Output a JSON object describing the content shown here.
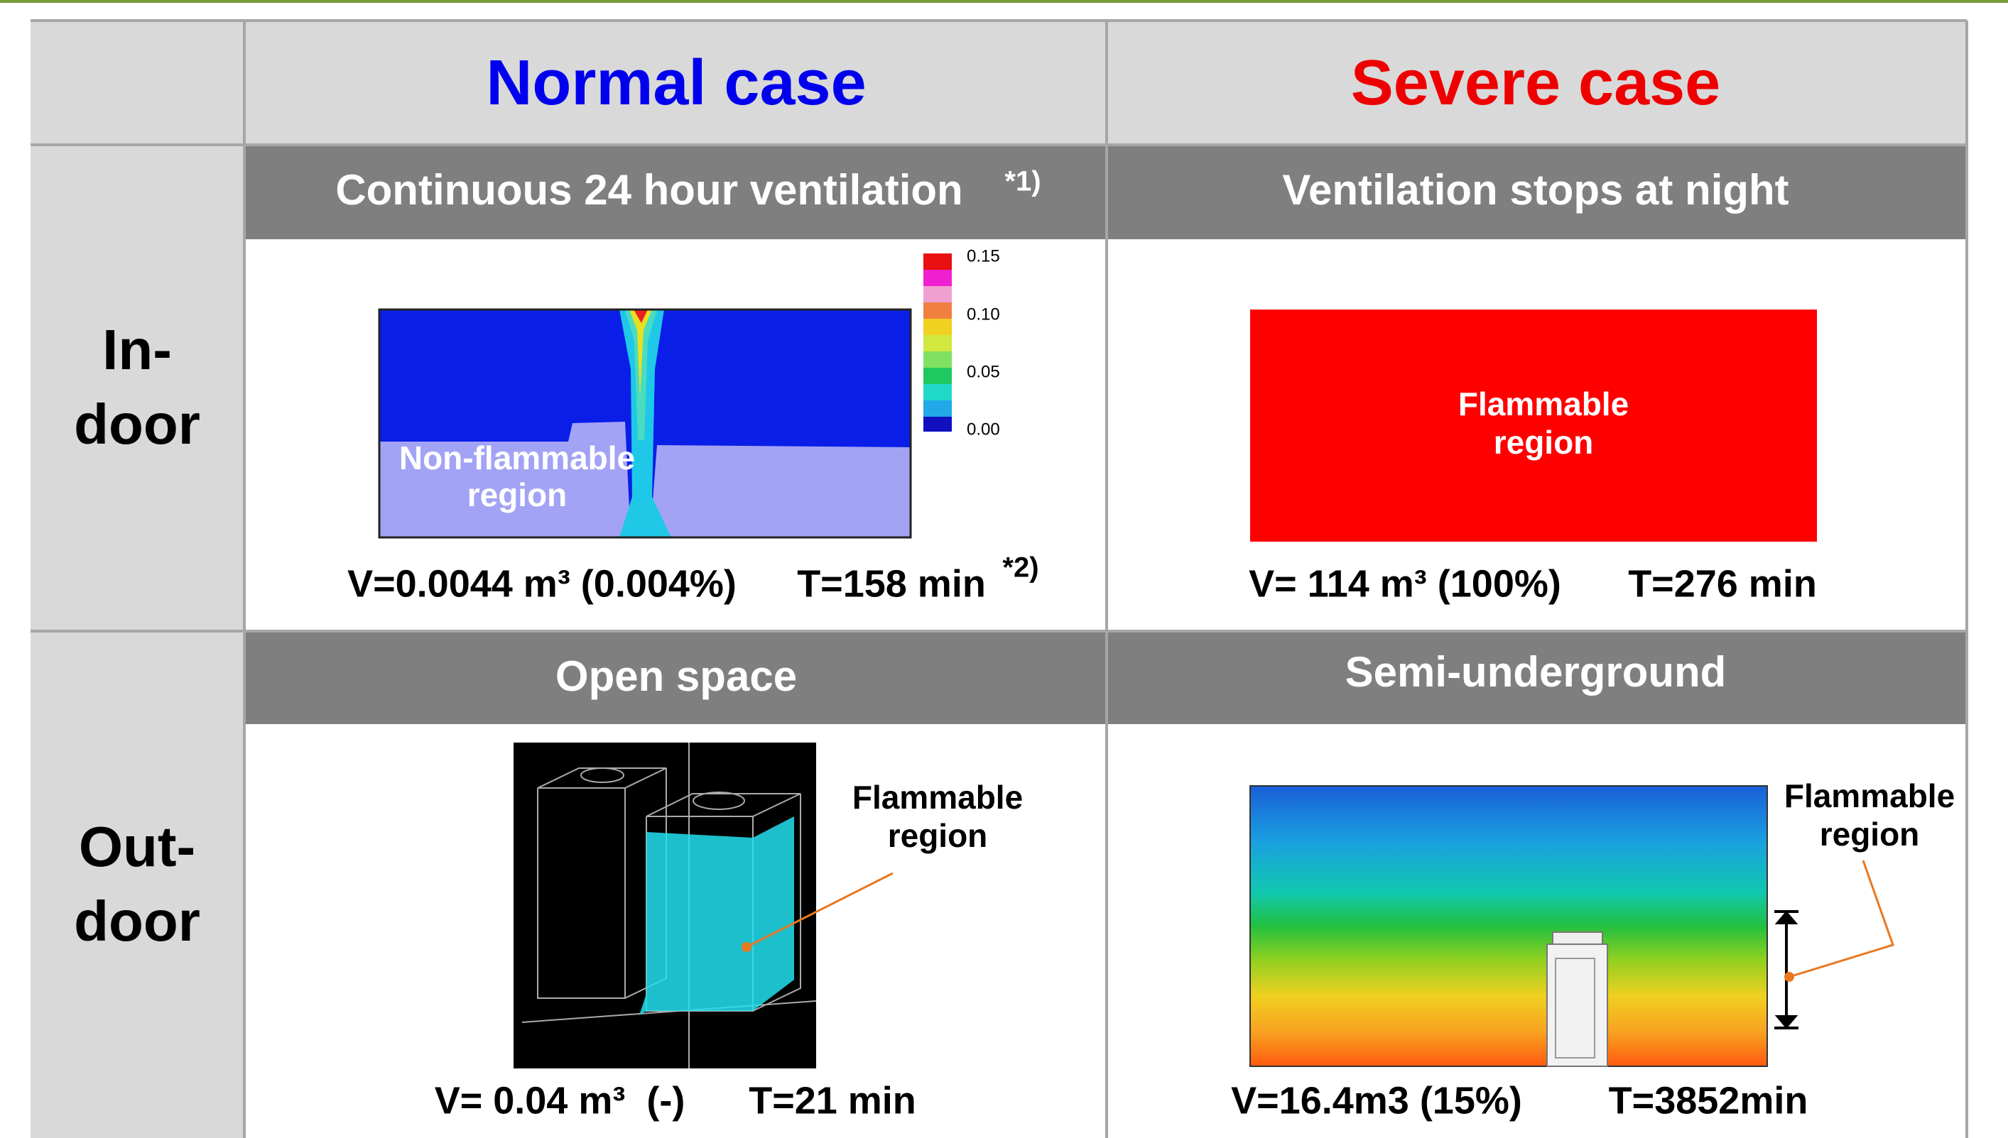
{
  "header": {
    "columns": [
      "Normal case",
      "Severe case"
    ]
  },
  "rows": [
    {
      "label": [
        "In-",
        "door"
      ],
      "cells": [
        {
          "subtitle": "Continuous 24 hour ventilation",
          "subtitle_note": "*1)",
          "colorbar_ticks": [
            "0.15",
            "0.10",
            "0.05",
            "0.00"
          ],
          "region_label": [
            "Non-flammable",
            "region"
          ],
          "volume": "V=0.0044 m³ (0.004%)",
          "time": "T=158 min",
          "note": "*2)"
        },
        {
          "subtitle": "Ventilation stops at night",
          "region_label": [
            "Flammable",
            "region"
          ],
          "volume": "V= 114 m³ (100%)",
          "time": "T=276 min"
        }
      ]
    },
    {
      "label": [
        "Out-",
        "door"
      ],
      "cells": [
        {
          "subtitle": "Open space",
          "region_label": [
            "Flammable",
            "region"
          ],
          "volume": "V= 0.04 m³  (-)",
          "time": "T=21 min"
        },
        {
          "subtitle": "Semi-underground",
          "region_label": [
            "Flammable",
            "region"
          ],
          "volume": "V=16.4m3 (15%)",
          "time": "T=3852min"
        }
      ]
    }
  ]
}
